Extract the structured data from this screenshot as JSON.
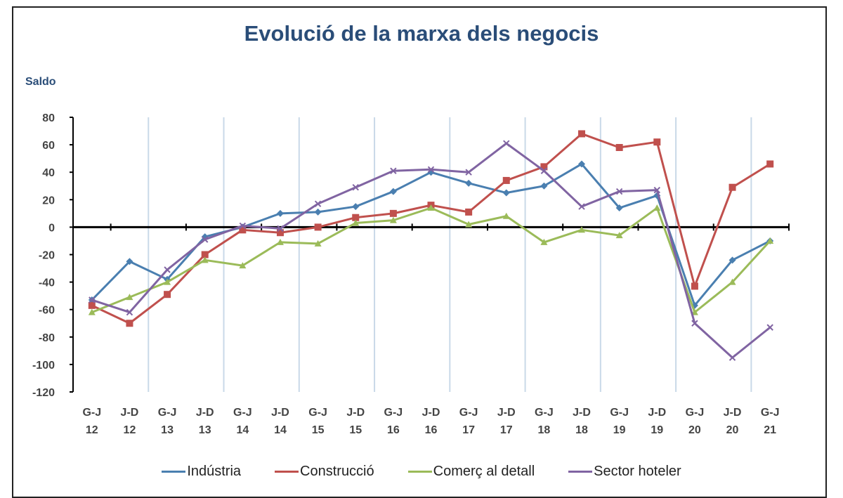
{
  "chart_data": {
    "type": "line",
    "title": "Evolució de la marxa dels negocis",
    "ylabel": "Saldo",
    "xlabel": "",
    "ylim": [
      -120,
      80
    ],
    "yticks": [
      80,
      60,
      40,
      20,
      0,
      -20,
      -40,
      -60,
      -80,
      -100,
      -120
    ],
    "categories": [
      [
        "G-J",
        "12"
      ],
      [
        "J-D",
        "12"
      ],
      [
        "G-J",
        "13"
      ],
      [
        "J-D",
        "13"
      ],
      [
        "G-J",
        "14"
      ],
      [
        "J-D",
        "14"
      ],
      [
        "G-J",
        "15"
      ],
      [
        "J-D",
        "15"
      ],
      [
        "G-J",
        "16"
      ],
      [
        "J-D",
        "16"
      ],
      [
        "G-J",
        "17"
      ],
      [
        "J-D",
        "17"
      ],
      [
        "G-J",
        "18"
      ],
      [
        "J-D",
        "18"
      ],
      [
        "G-J",
        "19"
      ],
      [
        "J-D",
        "19"
      ],
      [
        "G-J",
        "20"
      ],
      [
        "J-D",
        "20"
      ],
      [
        "G-J",
        "21"
      ]
    ],
    "grid": "vertical lines between years",
    "legend_position": "bottom",
    "series": [
      {
        "name": "Indústria",
        "color": "#4a7fb0",
        "marker": "diamond",
        "values": [
          -53,
          -25,
          -38,
          -7,
          0,
          10,
          11,
          15,
          26,
          40,
          32,
          25,
          30,
          46,
          14,
          23,
          -57,
          -24,
          -10
        ]
      },
      {
        "name": "Construcció",
        "color": "#c0504d",
        "marker": "square",
        "values": [
          -57,
          -70,
          -49,
          -20,
          -2,
          -4,
          0,
          7,
          10,
          16,
          11,
          34,
          44,
          68,
          58,
          62,
          -43,
          29,
          46
        ]
      },
      {
        "name": "Comerç al detall",
        "color": "#9bbb59",
        "marker": "triangle",
        "values": [
          -62,
          -51,
          -40,
          -24,
          -28,
          -11,
          -12,
          3,
          5,
          14,
          2,
          8,
          -11,
          -2,
          -6,
          14,
          -62,
          -40,
          -10
        ]
      },
      {
        "name": "Sector hoteler",
        "color": "#8064a2",
        "marker": "x",
        "values": [
          -53,
          -62,
          -31,
          -9,
          1,
          -1,
          17,
          29,
          41,
          42,
          40,
          61,
          41,
          15,
          26,
          27,
          -70,
          -95,
          -73
        ]
      }
    ]
  }
}
